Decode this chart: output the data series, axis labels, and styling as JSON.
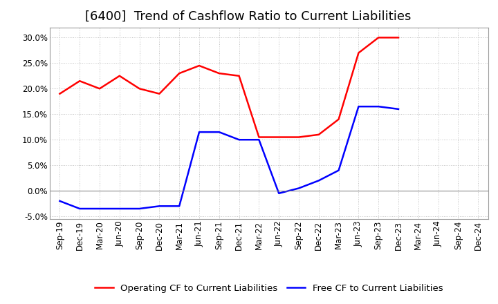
{
  "title": "[6400]  Trend of Cashflow Ratio to Current Liabilities",
  "all_labels": [
    "Sep-19",
    "Dec-19",
    "Mar-20",
    "Jun-20",
    "Sep-20",
    "Dec-20",
    "Mar-21",
    "Jun-21",
    "Sep-21",
    "Dec-21",
    "Mar-22",
    "Jun-22",
    "Sep-22",
    "Dec-22",
    "Mar-23",
    "Jun-23",
    "Sep-23",
    "Dec-23",
    "Mar-24",
    "Jun-24",
    "Sep-24",
    "Dec-24"
  ],
  "operating_cf_x": [
    0,
    1,
    2,
    3,
    4,
    5,
    6,
    7,
    8,
    9,
    10,
    11,
    12,
    13,
    14,
    15,
    16,
    17
  ],
  "operating_cf_y": [
    19.0,
    21.5,
    20.0,
    22.5,
    20.0,
    19.0,
    23.0,
    24.5,
    23.0,
    22.5,
    10.5,
    10.5,
    10.5,
    11.0,
    14.0,
    27.0,
    30.0,
    30.0
  ],
  "free_cf_x": [
    0,
    1,
    2,
    3,
    4,
    5,
    6,
    7,
    8,
    9,
    10,
    11,
    12,
    13,
    14,
    15,
    16,
    17
  ],
  "free_cf_y": [
    -2.0,
    -3.5,
    -3.5,
    -3.5,
    -3.5,
    -3.0,
    -3.0,
    11.5,
    11.5,
    10.0,
    10.0,
    -0.5,
    0.5,
    2.0,
    4.0,
    16.5,
    16.5,
    16.0
  ],
  "ylim_min": -5.5,
  "ylim_max": 32.0,
  "yticks": [
    -5.0,
    0.0,
    5.0,
    10.0,
    15.0,
    20.0,
    25.0,
    30.0
  ],
  "operating_color": "#FF0000",
  "free_color": "#0000FF",
  "grid_color": "#BBBBBB",
  "background_color": "#FFFFFF",
  "zero_line_color": "#888888",
  "legend_op": "Operating CF to Current Liabilities",
  "legend_free": "Free CF to Current Liabilities",
  "title_fontsize": 13,
  "axis_fontsize": 8.5,
  "legend_fontsize": 9.5,
  "line_width": 1.8
}
